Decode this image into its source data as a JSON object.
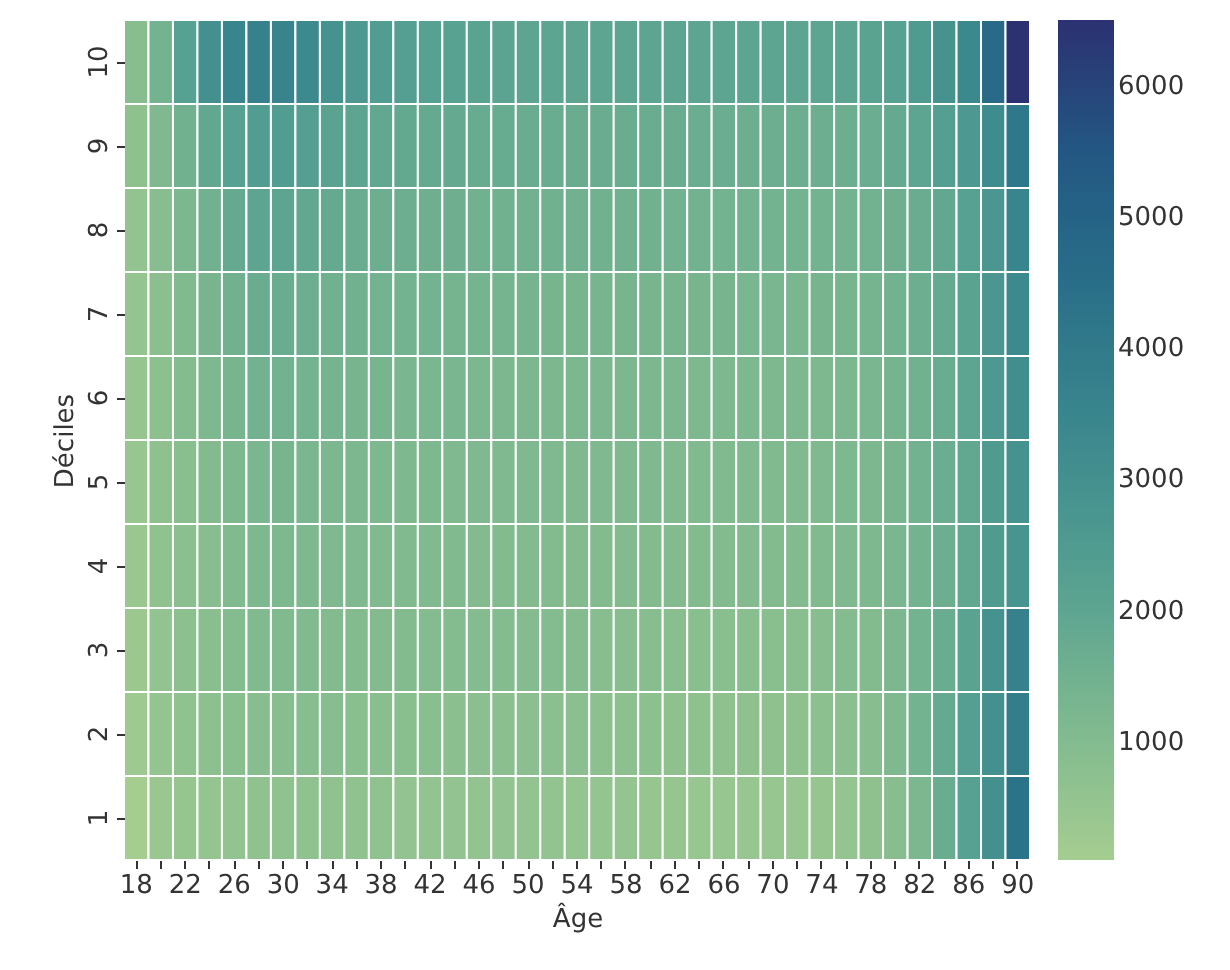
{
  "chart_data": {
    "type": "heatmap",
    "xlabel": "Âge",
    "ylabel": "Déciles",
    "categories": [
      "18",
      null,
      "22",
      null,
      "26",
      null,
      "30",
      null,
      "34",
      null,
      "38",
      null,
      "42",
      null,
      "46",
      null,
      "50",
      null,
      "54",
      null,
      "58",
      null,
      "62",
      null,
      "66",
      null,
      "70",
      null,
      "74",
      null,
      "78",
      null,
      "82",
      null,
      "86",
      null,
      "90"
    ],
    "y_categories": [
      "10",
      "9",
      "8",
      "7",
      "6",
      "5",
      "4",
      "3",
      "2",
      "1"
    ],
    "cells": [
      [
        900,
        1400,
        2200,
        3000,
        3500,
        3700,
        3600,
        3300,
        2900,
        2600,
        2400,
        2300,
        2200,
        2150,
        2100,
        2050,
        2000,
        2000,
        2000,
        2000,
        2000,
        2000,
        2000,
        2000,
        2000,
        2000,
        2000,
        2000,
        2000,
        2050,
        2100,
        2200,
        2500,
        2900,
        3400,
        4700,
        6500
      ],
      [
        700,
        1100,
        1500,
        1900,
        2200,
        2400,
        2400,
        2300,
        2100,
        2000,
        1900,
        1850,
        1800,
        1800,
        1750,
        1750,
        1700,
        1700,
        1700,
        1700,
        1700,
        1700,
        1700,
        1650,
        1650,
        1600,
        1600,
        1600,
        1600,
        1600,
        1650,
        1800,
        2000,
        2300,
        2600,
        3200,
        4100
      ],
      [
        600,
        900,
        1200,
        1500,
        1800,
        2000,
        2000,
        1900,
        1800,
        1700,
        1600,
        1600,
        1550,
        1550,
        1500,
        1500,
        1500,
        1500,
        1500,
        1500,
        1500,
        1500,
        1450,
        1450,
        1400,
        1400,
        1400,
        1400,
        1400,
        1400,
        1450,
        1550,
        1700,
        1900,
        2200,
        2700,
        3500
      ],
      [
        550,
        800,
        1050,
        1300,
        1500,
        1700,
        1700,
        1600,
        1500,
        1500,
        1400,
        1400,
        1400,
        1350,
        1350,
        1350,
        1350,
        1300,
        1300,
        1300,
        1300,
        1300,
        1300,
        1300,
        1300,
        1250,
        1250,
        1250,
        1300,
        1300,
        1350,
        1450,
        1600,
        1800,
        2100,
        2700,
        3300
      ],
      [
        500,
        750,
        950,
        1150,
        1300,
        1450,
        1450,
        1400,
        1350,
        1300,
        1300,
        1250,
        1250,
        1250,
        1200,
        1200,
        1200,
        1200,
        1200,
        1200,
        1200,
        1200,
        1200,
        1150,
        1150,
        1150,
        1150,
        1150,
        1150,
        1200,
        1250,
        1350,
        1500,
        1700,
        2000,
        2600,
        3100
      ],
      [
        450,
        700,
        850,
        1000,
        1150,
        1250,
        1300,
        1250,
        1200,
        1200,
        1150,
        1150,
        1150,
        1100,
        1100,
        1100,
        1100,
        1100,
        1100,
        1100,
        1100,
        1100,
        1050,
        1050,
        1050,
        1050,
        1050,
        1050,
        1100,
        1150,
        1200,
        1300,
        1450,
        1650,
        1900,
        2500,
        2900
      ],
      [
        400,
        650,
        800,
        900,
        1050,
        1150,
        1150,
        1150,
        1100,
        1100,
        1050,
        1050,
        1050,
        1050,
        1000,
        1000,
        1000,
        1000,
        1000,
        1000,
        1000,
        1000,
        1000,
        1000,
        1000,
        1000,
        1000,
        1000,
        1050,
        1100,
        1150,
        1250,
        1400,
        1600,
        1900,
        2500,
        2800
      ],
      [
        350,
        600,
        750,
        850,
        950,
        1050,
        1050,
        1050,
        1000,
        1000,
        1000,
        1000,
        950,
        950,
        950,
        950,
        950,
        950,
        950,
        900,
        900,
        900,
        850,
        850,
        850,
        850,
        850,
        850,
        900,
        950,
        1000,
        1200,
        1400,
        1700,
        2100,
        2900,
        3700
      ],
      [
        300,
        550,
        650,
        750,
        850,
        900,
        900,
        900,
        900,
        850,
        850,
        850,
        850,
        800,
        800,
        800,
        800,
        800,
        800,
        750,
        750,
        750,
        700,
        700,
        700,
        700,
        700,
        700,
        750,
        800,
        900,
        1100,
        1400,
        1800,
        2300,
        3000,
        3800
      ],
      [
        100,
        400,
        500,
        550,
        600,
        650,
        650,
        650,
        650,
        650,
        650,
        600,
        600,
        600,
        600,
        600,
        600,
        600,
        550,
        550,
        550,
        500,
        500,
        450,
        450,
        450,
        450,
        450,
        500,
        550,
        700,
        900,
        1200,
        1700,
        2200,
        3000,
        4300
      ]
    ],
    "clim": [
      100,
      6500
    ],
    "cticks": [
      1000,
      2000,
      3000,
      4000,
      5000,
      6000
    ]
  }
}
